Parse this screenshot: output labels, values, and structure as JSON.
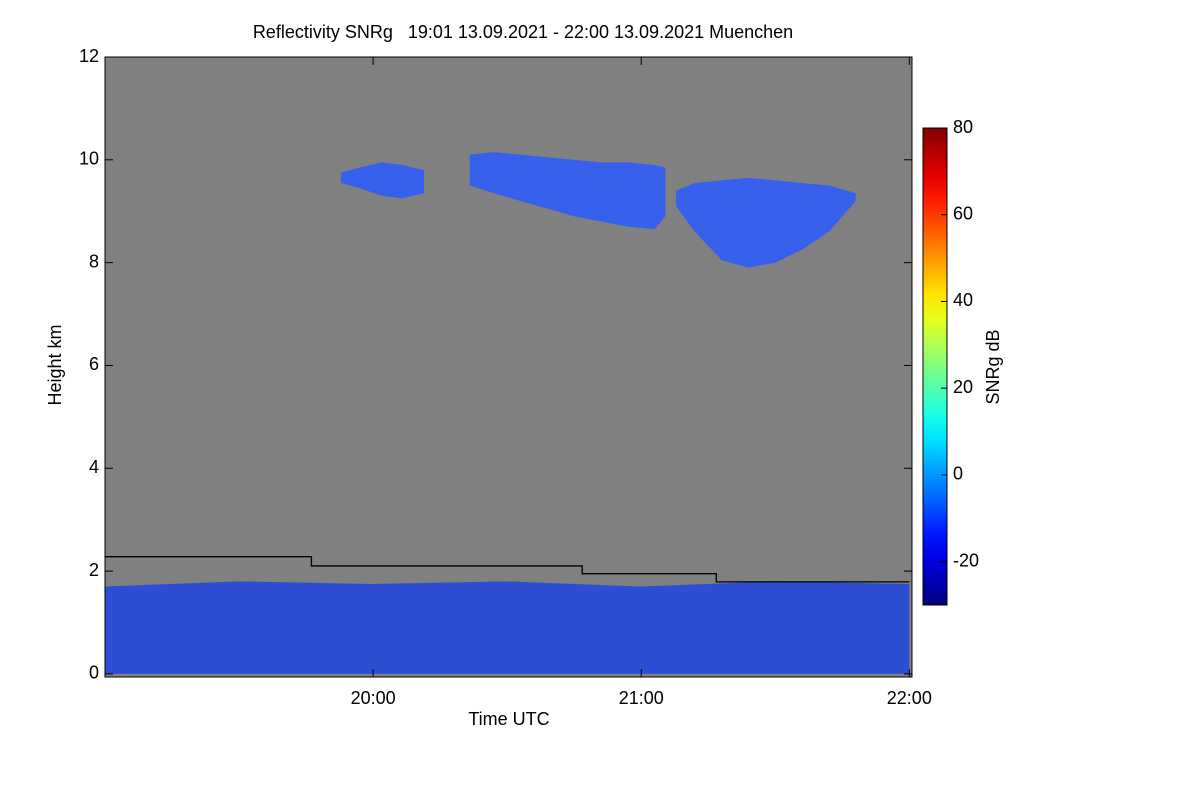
{
  "chart_data": {
    "type": "heatmap",
    "title": "Reflectivity SNRg   19:01 13.09.2021 - 22:00 13.09.2021 Muenchen",
    "xlabel": "Time UTC",
    "ylabel": "Height km",
    "colorbar_label": "SNRg dB",
    "xlim": [
      19.0,
      22.01
    ],
    "ylim": [
      -0.06,
      12
    ],
    "xticks": [
      {
        "value": 20,
        "label": "20:00"
      },
      {
        "value": 21,
        "label": "21:00"
      },
      {
        "value": 22,
        "label": "22:00"
      }
    ],
    "yticks": [
      0,
      2,
      4,
      6,
      8,
      10,
      12
    ],
    "clim": [
      -30,
      80
    ],
    "cticks": [
      -20,
      0,
      20,
      40,
      60,
      80
    ],
    "background": "#808080",
    "series": [
      {
        "type": "area",
        "color": "#2a5cff",
        "x": [
          19.88,
          19.95,
          20.03,
          20.11,
          20.19
        ],
        "values": [
          9.75,
          9.85,
          9.95,
          9.9,
          9.8
        ],
        "base": [
          9.55,
          9.45,
          9.3,
          9.25,
          9.35
        ]
      },
      {
        "type": "area",
        "color": "#2a5cff",
        "x": [
          20.36,
          20.45,
          20.55,
          20.65,
          20.75,
          20.85,
          20.95,
          21.05,
          21.09
        ],
        "values": [
          10.1,
          10.15,
          10.1,
          10.05,
          10.0,
          9.95,
          9.95,
          9.9,
          9.85
        ],
        "base": [
          9.5,
          9.35,
          9.2,
          9.05,
          8.9,
          8.8,
          8.7,
          8.65,
          8.9
        ]
      },
      {
        "type": "area",
        "color": "#2a5cff",
        "x": [
          21.13,
          21.2,
          21.3,
          21.4,
          21.5,
          21.6,
          21.7,
          21.8
        ],
        "values": [
          9.4,
          9.55,
          9.6,
          9.65,
          9.6,
          9.55,
          9.5,
          9.35
        ],
        "base": [
          9.1,
          8.6,
          8.05,
          7.9,
          8.0,
          8.25,
          8.6,
          9.2
        ]
      },
      {
        "type": "area",
        "color": "#1f45e0",
        "x": [
          19.0,
          19.5,
          20.0,
          20.5,
          21.0,
          21.5,
          22.0
        ],
        "values": [
          1.7,
          1.8,
          1.75,
          1.8,
          1.7,
          1.8,
          1.75
        ],
        "base": [
          0,
          0,
          0,
          0,
          0,
          0,
          0
        ]
      },
      {
        "type": "line",
        "color": "#000000",
        "x": [
          19.0,
          19.77,
          19.77,
          20.78,
          20.78,
          21.28,
          21.28,
          22.0
        ],
        "values": [
          2.28,
          2.28,
          2.1,
          2.1,
          1.95,
          1.95,
          1.79,
          1.79
        ]
      }
    ]
  }
}
